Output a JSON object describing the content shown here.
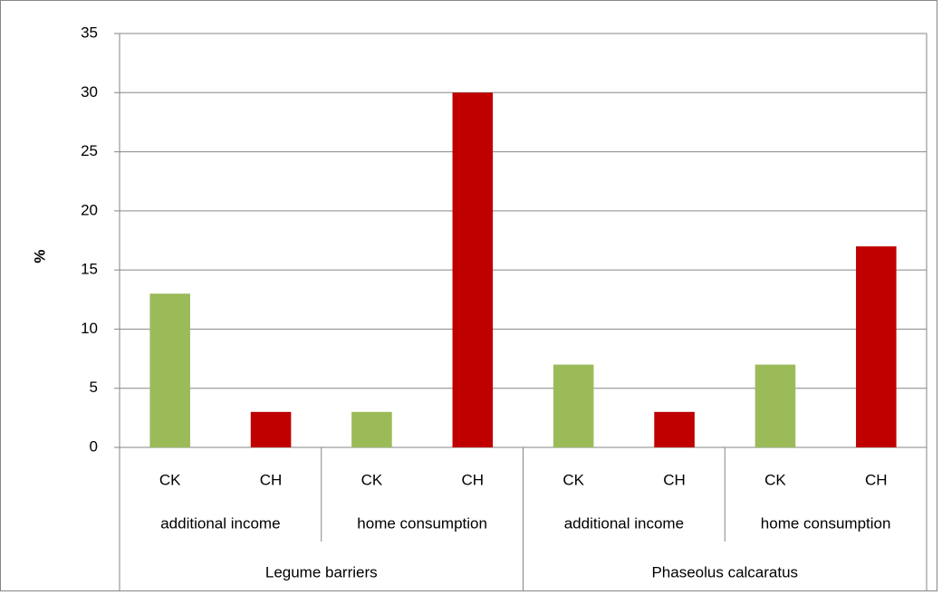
{
  "chart_data": {
    "type": "bar",
    "y_label": "%",
    "ylim": [
      0,
      35
    ],
    "yticks": [
      0,
      5,
      10,
      15,
      20,
      25,
      30,
      35
    ],
    "grid": true,
    "category_colors": [
      "#9bbb59",
      "#c00000"
    ],
    "groups": [
      {
        "name": "Legume barriers",
        "subgroups": [
          {
            "name": "additional income",
            "categories": [
              "CK",
              "CH"
            ],
            "values": [
              13,
              3
            ]
          },
          {
            "name": "home consumption",
            "categories": [
              "CK",
              "CH"
            ],
            "values": [
              3,
              30
            ]
          }
        ]
      },
      {
        "name": "Phaseolus calcaratus",
        "subgroups": [
          {
            "name": "additional income",
            "categories": [
              "CK",
              "CH"
            ],
            "values": [
              7,
              3
            ]
          },
          {
            "name": "home consumption",
            "categories": [
              "CK",
              "CH"
            ],
            "values": [
              7,
              17
            ]
          }
        ]
      }
    ]
  }
}
